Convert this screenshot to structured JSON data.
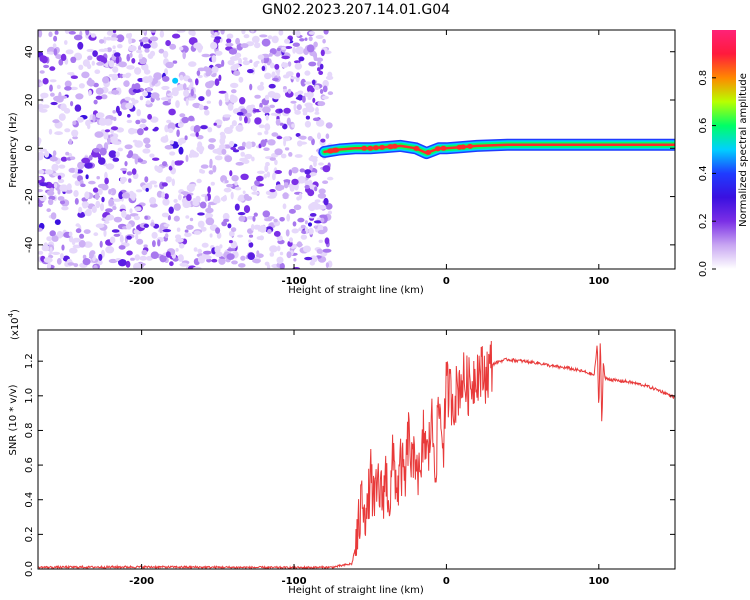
{
  "title": "GN02.2023.207.14.01.G04",
  "chart_data": [
    {
      "type": "heatmap",
      "xlabel": "Height of straight line (km)",
      "ylabel": "Frequency (Hz)",
      "xlim": [
        -268,
        150
      ],
      "ylim": [
        -50,
        49
      ],
      "xticks": [
        -200,
        -100,
        0,
        100
      ],
      "yticks": [
        -40,
        -20,
        0,
        20,
        40
      ],
      "xtick_labels": [
        "-200",
        "-100",
        "0",
        "100"
      ],
      "ytick_labels": [
        "-40",
        "-20",
        "0",
        "20",
        "40"
      ],
      "noise_region_x": [
        -268,
        -76
      ],
      "signal_band": {
        "x": [
          -80,
          -75,
          -70,
          -60,
          -50,
          -40,
          -30,
          -20,
          -13,
          -5,
          0,
          10,
          20,
          40,
          60,
          80,
          100,
          120,
          150
        ],
        "freq": [
          -1.5,
          -1,
          -0.5,
          0,
          0,
          0.5,
          1,
          0,
          -2,
          0,
          0,
          0.5,
          1,
          1.5,
          1.5,
          1.5,
          1.5,
          1.5,
          1.5
        ]
      },
      "grid": false,
      "colorbar": {
        "label": "Normalized spectral amplitude",
        "range": [
          0,
          1
        ],
        "ticks": [
          0.0,
          0.2,
          0.4,
          0.6,
          0.8
        ],
        "tick_labels": [
          "0.0",
          "0.2",
          "0.4",
          "0.6",
          "0.8"
        ],
        "colors": [
          "#ffffff",
          "#c8a6f2",
          "#7b2fe6",
          "#3a10e0",
          "#1f3cff",
          "#00d0ff",
          "#00ff66",
          "#b8ff00",
          "#ff8800",
          "#ff1a3c",
          "#ff2277"
        ]
      }
    },
    {
      "type": "line",
      "xlabel": "Height of straight line (km)",
      "ylabel": "SNR (10 * v/v)",
      "y_multiplier_label": "(x10",
      "y_multiplier_exp": "4",
      "xlim": [
        -268,
        150
      ],
      "ylim": [
        0,
        1.38
      ],
      "xticks": [
        -200,
        -100,
        0,
        100
      ],
      "yticks": [
        0.0,
        0.2,
        0.4,
        0.6,
        0.8,
        1.0,
        1.2
      ],
      "xtick_labels": [
        "-200",
        "-100",
        "0",
        "100"
      ],
      "ytick_labels": [
        "0.0",
        "0.2",
        "0.4",
        "0.6",
        "0.8",
        "1.0",
        "1.2"
      ],
      "color": "#e83a3a",
      "grid": false,
      "series": [
        {
          "x": [
            -268,
            -200,
            -150,
            -100,
            -75,
            -62,
            -58,
            -55,
            -52,
            -50,
            -47,
            -45,
            -42,
            -40,
            -37,
            -35,
            -32,
            -30,
            -27,
            -25,
            -22,
            -20,
            -17,
            -15,
            -12,
            -10,
            -7,
            -5,
            -2,
            0,
            5,
            10,
            15,
            20,
            25,
            30,
            35,
            40,
            50,
            60,
            70,
            80,
            90,
            97,
            99,
            100,
            101,
            102,
            103,
            104,
            105,
            110,
            120,
            130,
            140,
            150
          ],
          "y": [
            0.01,
            0.012,
            0.01,
            0.008,
            0.01,
            0.03,
            0.2,
            0.45,
            0.28,
            0.55,
            0.35,
            0.5,
            0.4,
            0.55,
            0.38,
            0.65,
            0.45,
            0.6,
            0.5,
            0.78,
            0.55,
            0.7,
            0.45,
            0.8,
            0.62,
            0.88,
            0.6,
            0.95,
            0.72,
            1.05,
            0.98,
            1.1,
            1.05,
            1.15,
            1.12,
            1.18,
            1.2,
            1.21,
            1.2,
            1.19,
            1.17,
            1.16,
            1.14,
            1.12,
            1.3,
            0.9,
            1.35,
            0.82,
            1.2,
            1.1,
            1.1,
            1.09,
            1.08,
            1.06,
            1.03,
            0.99
          ]
        }
      ]
    }
  ]
}
